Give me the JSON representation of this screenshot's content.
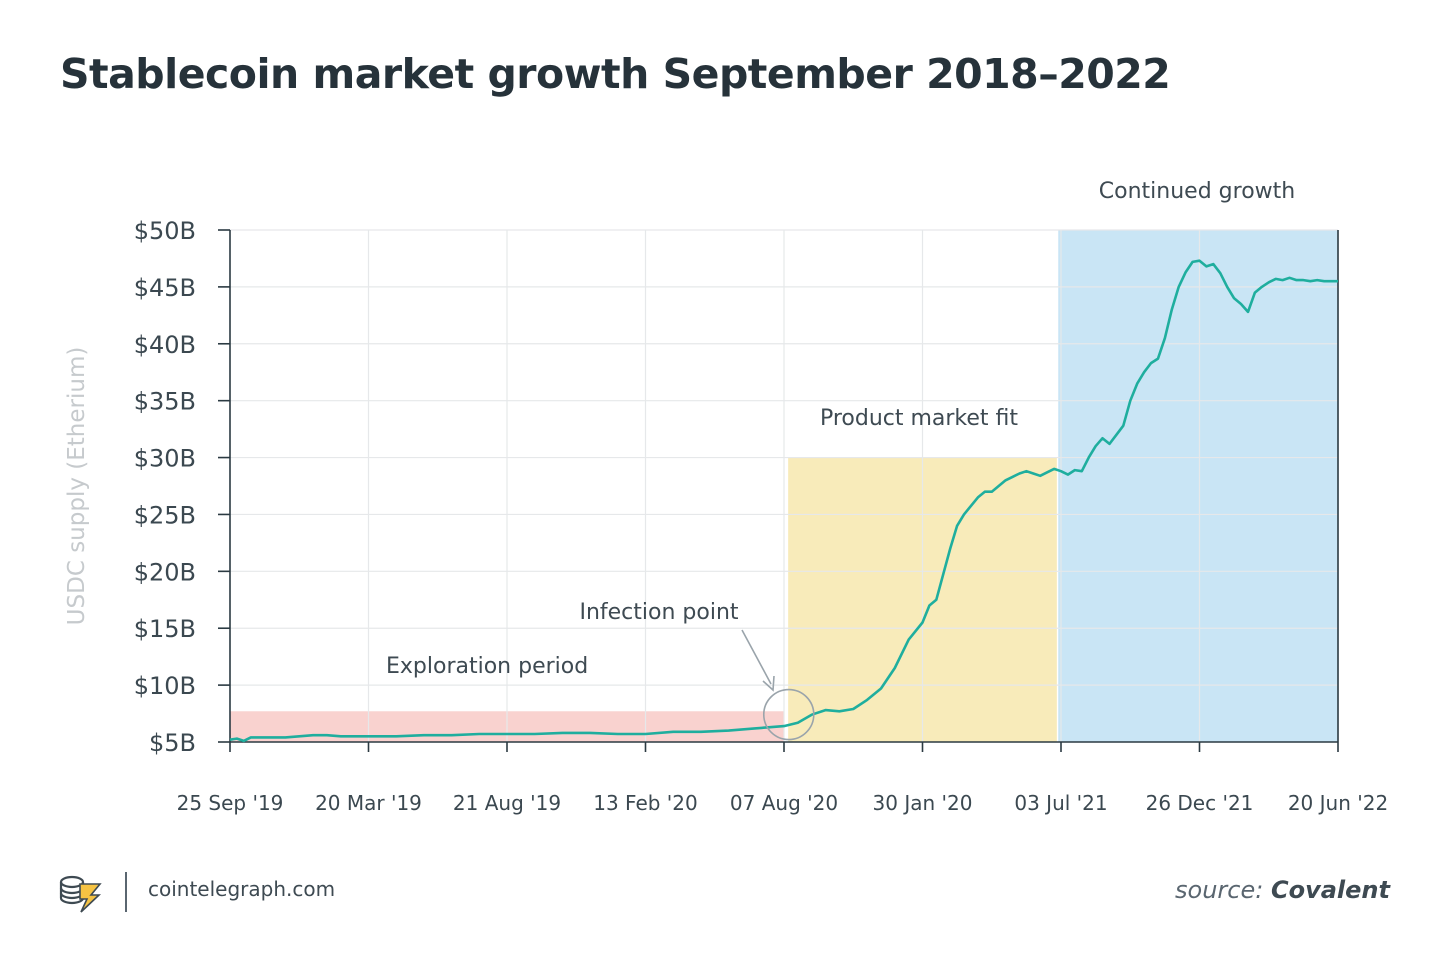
{
  "title": "Stablecoin market growth September 2018–2022",
  "footer": {
    "site": "cointelegraph.com",
    "source_prefix": "source:",
    "source_name": "Covalent"
  },
  "colors": {
    "line": "#1fae9e",
    "exploration": "#f9d2cf",
    "product": "#f8ebba",
    "growth": "#c9e5f5",
    "grid": "#e6e8ea",
    "axis": "#2b3a42",
    "ylabel": "#c6cacd"
  },
  "chart_data": {
    "type": "line",
    "title": "Stablecoin market growth September 2018–2022",
    "xlabel": "",
    "ylabel": "USDC supply (Etherium)",
    "ylim": [
      5,
      50
    ],
    "grid": true,
    "yticks": [
      5,
      10,
      15,
      20,
      25,
      30,
      35,
      40,
      45,
      50
    ],
    "ytick_labels": [
      "$5B",
      "$10B",
      "$15B",
      "$20B",
      "$25B",
      "$30B",
      "$35B",
      "$40B",
      "$45B",
      "$50B"
    ],
    "xticks": [
      0,
      1,
      2,
      3,
      4,
      5,
      6,
      7,
      8
    ],
    "xtick_labels": [
      "25 Sep '19",
      "20 Mar '19",
      "21 Aug '19",
      "13 Feb '20",
      "07 Aug '20",
      "30 Jan '20",
      "03 Jul '21",
      "26 Dec '21",
      "20 Jun '22"
    ],
    "xlim": [
      0,
      8
    ],
    "regions": [
      {
        "label": "Exploration period",
        "x0": 0,
        "x1": 4,
        "y0": 5,
        "y1": 7.7,
        "color_key": "exploration"
      },
      {
        "label": "Product market fit",
        "x0": 4.03,
        "x1": 5.97,
        "y0": 5,
        "y1": 30,
        "color_key": "product"
      },
      {
        "label": "Continued growth",
        "x0": 5.98,
        "x1": 8,
        "y0": 5,
        "y1": 50,
        "color_key": "growth"
      }
    ],
    "annotation": {
      "label": "Infection point",
      "x": 4.02,
      "y": 7.5
    },
    "series": [
      {
        "name": "USDC supply",
        "x": [
          0,
          0.05,
          0.1,
          0.15,
          0.25,
          0.4,
          0.5,
          0.6,
          0.7,
          0.8,
          0.9,
          1.0,
          1.2,
          1.4,
          1.6,
          1.8,
          2.0,
          2.2,
          2.4,
          2.6,
          2.8,
          3.0,
          3.2,
          3.4,
          3.6,
          3.8,
          3.9,
          4.0,
          4.1,
          4.2,
          4.3,
          4.4,
          4.5,
          4.6,
          4.7,
          4.8,
          4.9,
          5.0,
          5.05,
          5.1,
          5.2,
          5.25,
          5.3,
          5.4,
          5.45,
          5.5,
          5.55,
          5.6,
          5.65,
          5.7,
          5.75,
          5.8,
          5.85,
          5.9,
          5.95,
          6.0,
          6.05,
          6.1,
          6.15,
          6.2,
          6.25,
          6.3,
          6.35,
          6.4,
          6.45,
          6.5,
          6.55,
          6.6,
          6.65,
          6.7,
          6.75,
          6.8,
          6.85,
          6.9,
          6.95,
          7.0,
          7.05,
          7.1,
          7.15,
          7.2,
          7.25,
          7.3,
          7.35,
          7.4,
          7.45,
          7.5,
          7.55,
          7.6,
          7.65,
          7.7,
          7.75,
          7.8,
          7.85,
          7.9,
          7.95,
          8.0
        ],
        "values": [
          5.2,
          5.3,
          5.1,
          5.4,
          5.4,
          5.4,
          5.5,
          5.6,
          5.6,
          5.5,
          5.5,
          5.5,
          5.5,
          5.6,
          5.6,
          5.7,
          5.7,
          5.7,
          5.8,
          5.8,
          5.7,
          5.7,
          5.9,
          5.9,
          6.0,
          6.2,
          6.3,
          6.4,
          6.7,
          7.4,
          7.8,
          7.7,
          7.9,
          8.7,
          9.7,
          11.5,
          14.0,
          15.5,
          17.0,
          17.5,
          22.0,
          24.0,
          25.0,
          26.5,
          27.0,
          27.0,
          27.5,
          28.0,
          28.3,
          28.6,
          28.8,
          28.6,
          28.4,
          28.7,
          29.0,
          28.8,
          28.5,
          28.9,
          28.8,
          30.0,
          31.0,
          31.7,
          31.2,
          32.0,
          32.8,
          35.0,
          36.5,
          37.5,
          38.3,
          38.7,
          40.5,
          43.0,
          45.0,
          46.3,
          47.2,
          47.3,
          46.8,
          47.0,
          46.2,
          45.0,
          44.0,
          43.5,
          42.8,
          44.5,
          45.0,
          45.4,
          45.7,
          45.6,
          45.8,
          45.6,
          45.6,
          45.5,
          45.6,
          45.5,
          45.5,
          45.5
        ]
      }
    ]
  }
}
